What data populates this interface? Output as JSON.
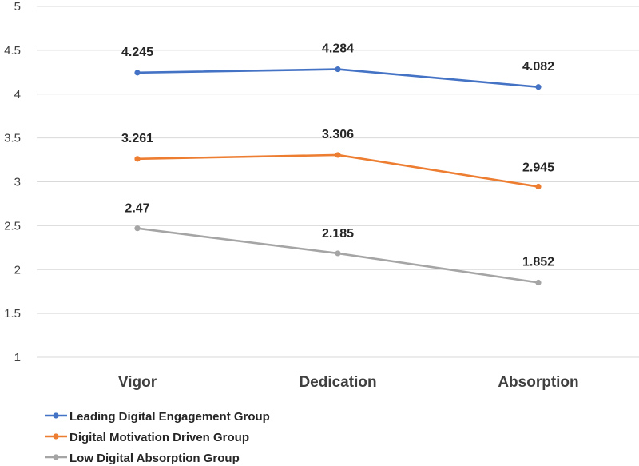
{
  "chart_data": {
    "type": "line",
    "title": "",
    "xlabel": "",
    "ylabel": "",
    "categories": [
      "Vigor",
      "Dedication",
      "Absorption"
    ],
    "ylim": [
      1,
      5
    ],
    "yticks": [
      "1",
      "1.5",
      "2",
      "2.5",
      "3",
      "3.5",
      "4",
      "4.5",
      "5"
    ],
    "grid": true,
    "legend_position": "bottom-left",
    "series": [
      {
        "name": "Leading Digital Engagement Group",
        "color": "#4472c4",
        "values": [
          4.245,
          4.284,
          4.082
        ],
        "labels": [
          "4.245",
          "4.284",
          "4.082"
        ]
      },
      {
        "name": "Digital Motivation Driven Group",
        "color": "#ed7d31",
        "values": [
          3.261,
          3.306,
          2.945
        ],
        "labels": [
          "3.261",
          "3.306",
          "2.945"
        ]
      },
      {
        "name": "Low Digital Absorption Group",
        "color": "#a5a5a5",
        "values": [
          2.47,
          2.185,
          1.852
        ],
        "labels": [
          "2.47",
          "2.185",
          "1.852"
        ]
      }
    ]
  }
}
